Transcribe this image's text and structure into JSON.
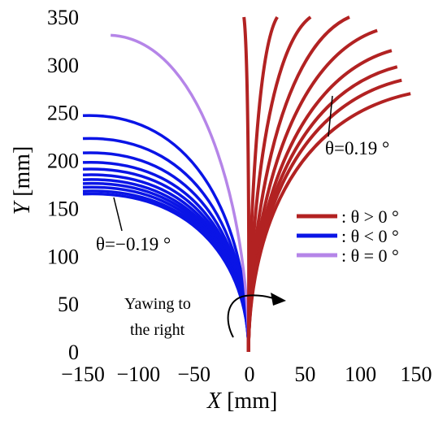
{
  "chart_data": {
    "type": "line",
    "xlabel": {
      "var": "X",
      "unit": " [mm]"
    },
    "ylabel": {
      "var": "Y",
      "unit": " [mm]"
    },
    "xlim": [
      -150,
      150
    ],
    "ylim": [
      0,
      350
    ],
    "x_ticks": [
      "−150",
      "−100",
      "−50",
      "0",
      "50",
      "100",
      "150"
    ],
    "x_tick_values": [
      -150,
      -100,
      -50,
      0,
      50,
      100,
      150
    ],
    "y_ticks": [
      "0",
      "50",
      "100",
      "150",
      "200",
      "250",
      "300",
      "350"
    ],
    "y_tick_values": [
      0,
      50,
      100,
      150,
      200,
      250,
      300,
      350
    ],
    "grid": false,
    "legend_position": "right",
    "legend": [
      {
        "label": ": θ > 0 °",
        "color": "#b22222"
      },
      {
        "label": ": θ < 0 °",
        "color": "#0a14e6"
      },
      {
        "label": ": θ = 0 °",
        "color": "#b585e8"
      }
    ],
    "annotations": [
      {
        "text": "θ=0.19 °",
        "x": 120,
        "y": 270
      },
      {
        "text": "θ=−0.19 °",
        "x": -135,
        "y": 165
      },
      {
        "text": "Yawing to",
        "x": -65,
        "y": 50
      },
      {
        "text": "the right",
        "x": -65,
        "y": 25
      }
    ],
    "series": [
      {
        "group": "theta_pos",
        "color": "#b22222",
        "end": [
          -5,
          350
        ]
      },
      {
        "group": "theta_pos",
        "color": "#b22222",
        "end": [
          25,
          350
        ]
      },
      {
        "group": "theta_pos",
        "color": "#b22222",
        "end": [
          55,
          350
        ]
      },
      {
        "group": "theta_pos",
        "color": "#b22222",
        "end": [
          90,
          350
        ]
      },
      {
        "group": "theta_pos",
        "color": "#b22222",
        "end": [
          115,
          336
        ]
      },
      {
        "group": "theta_pos",
        "color": "#b22222",
        "end": [
          128,
          315
        ]
      },
      {
        "group": "theta_pos",
        "color": "#b22222",
        "end": [
          133,
          298
        ]
      },
      {
        "group": "theta_pos",
        "color": "#b22222",
        "end": [
          137,
          284
        ]
      },
      {
        "group": "theta_pos",
        "color": "#b22222",
        "end": [
          145,
          270
        ]
      },
      {
        "group": "theta_zero",
        "color": "#b585e8",
        "end": [
          -125,
          331
        ]
      },
      {
        "group": "theta_neg",
        "color": "#0a14e6",
        "end": [
          -150,
          247
        ]
      },
      {
        "group": "theta_neg",
        "color": "#0a14e6",
        "end": [
          -150,
          223
        ]
      },
      {
        "group": "theta_neg",
        "color": "#0a14e6",
        "end": [
          -150,
          208
        ]
      },
      {
        "group": "theta_neg",
        "color": "#0a14e6",
        "end": [
          -150,
          198
        ]
      },
      {
        "group": "theta_neg",
        "color": "#0a14e6",
        "end": [
          -150,
          191
        ]
      },
      {
        "group": "theta_neg",
        "color": "#0a14e6",
        "end": [
          -150,
          185
        ]
      },
      {
        "group": "theta_neg",
        "color": "#0a14e6",
        "end": [
          -150,
          180
        ]
      },
      {
        "group": "theta_neg",
        "color": "#0a14e6",
        "end": [
          -150,
          176
        ]
      },
      {
        "group": "theta_neg",
        "color": "#0a14e6",
        "end": [
          -150,
          172
        ]
      },
      {
        "group": "theta_neg",
        "color": "#0a14e6",
        "end": [
          -150,
          168
        ]
      },
      {
        "group": "theta_neg",
        "color": "#0a14e6",
        "end": [
          -150,
          165
        ]
      }
    ]
  }
}
